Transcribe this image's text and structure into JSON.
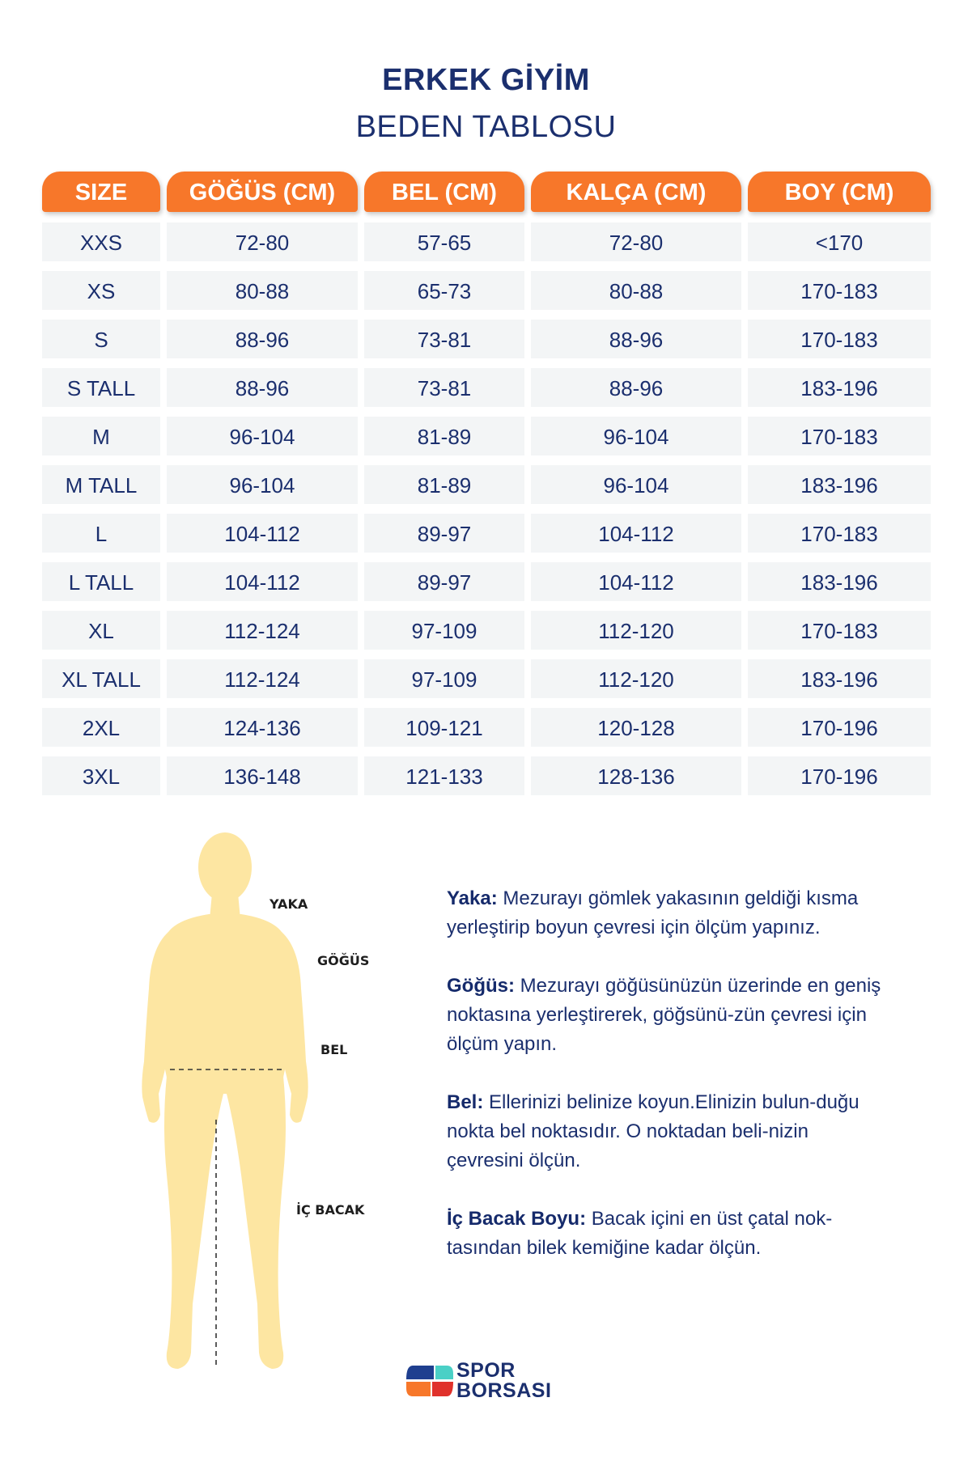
{
  "header": {
    "title": "ERKEK GİYİM",
    "subtitle": "BEDEN TABLOSU"
  },
  "table": {
    "headers": [
      "SIZE",
      "GÖĞÜS (CM)",
      "BEL (CM)",
      "KALÇA (CM)",
      "BOY (CM)"
    ],
    "rows": [
      [
        "XXS",
        "72-80",
        "57-65",
        "72-80",
        "<170"
      ],
      [
        "XS",
        "80-88",
        "65-73",
        "80-88",
        "170-183"
      ],
      [
        "S",
        "88-96",
        "73-81",
        "88-96",
        "170-183"
      ],
      [
        "S TALL",
        "88-96",
        "73-81",
        "88-96",
        "183-196"
      ],
      [
        "M",
        "96-104",
        "81-89",
        "96-104",
        "170-183"
      ],
      [
        "M TALL",
        "96-104",
        "81-89",
        "96-104",
        "183-196"
      ],
      [
        "L",
        "104-112",
        "89-97",
        "104-112",
        "170-183"
      ],
      [
        "L TALL",
        "104-112",
        "89-97",
        "104-112",
        "183-196"
      ],
      [
        "XL",
        "112-124",
        "97-109",
        "112-120",
        "170-183"
      ],
      [
        "XL TALL",
        "112-124",
        "97-109",
        "112-120",
        "183-196"
      ],
      [
        "2XL",
        "124-136",
        "109-121",
        "120-128",
        "170-196"
      ],
      [
        "3XL",
        "136-148",
        "121-133",
        "128-136",
        "170-196"
      ]
    ]
  },
  "figure": {
    "labels": {
      "yaka": "YAKA",
      "gogus": "GÖĞÜS",
      "bel": "BEL",
      "ic_bacak": "İÇ BACAK"
    }
  },
  "instructions": [
    {
      "term": "Yaka:",
      "text": " Mezurayı gömlek yakasının geldiği kısma yerleştirip boyun çevresi için ölçüm yapınız."
    },
    {
      "term": "Göğüs:",
      "text": " Mezurayı göğüsünüzün üzerinde en geniş noktasına yerleştirerek, göğsünü-zün çevresi için ölçüm yapın."
    },
    {
      "term": "Bel:",
      "text": " Ellerinizi belinize koyun.Elinizin bulun-duğu nokta bel noktasıdır. O noktadan beli-nizin çevresini ölçün."
    },
    {
      "term": "İç Bacak Boyu:",
      "text": " Bacak içini en üst çatal nok-tasından bilek kemiğine kadar ölçün."
    }
  ],
  "logo": {
    "line1": "SPOR",
    "line2": "BORSASI"
  },
  "colors": {
    "accent": "#f7772a",
    "navy": "#1b2f6e",
    "row_bg": "#f3f5f6",
    "silhouette": "#fde6a2"
  }
}
